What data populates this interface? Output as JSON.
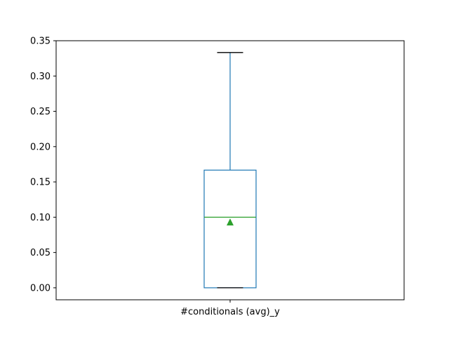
{
  "chart_data": {
    "type": "box",
    "categories": [
      "#conditionals (avg)_y"
    ],
    "series": [
      {
        "whisker_low": 0.0,
        "q1": 0.0,
        "median": 0.1,
        "q3": 0.1667,
        "whisker_high": 0.3333,
        "mean": 0.0926
      }
    ],
    "ylim": [
      -0.017,
      0.35
    ],
    "yticks": [
      0.0,
      0.05,
      0.1,
      0.15,
      0.2,
      0.25,
      0.3,
      0.35
    ],
    "ytick_labels": [
      "0.00",
      "0.05",
      "0.10",
      "0.15",
      "0.20",
      "0.25",
      "0.30",
      "0.35"
    ],
    "grid": false,
    "colors": {
      "box": "#1f77b4",
      "median": "#2ca02c",
      "mean_marker": "#2ca02c",
      "caps": "#000000"
    }
  }
}
